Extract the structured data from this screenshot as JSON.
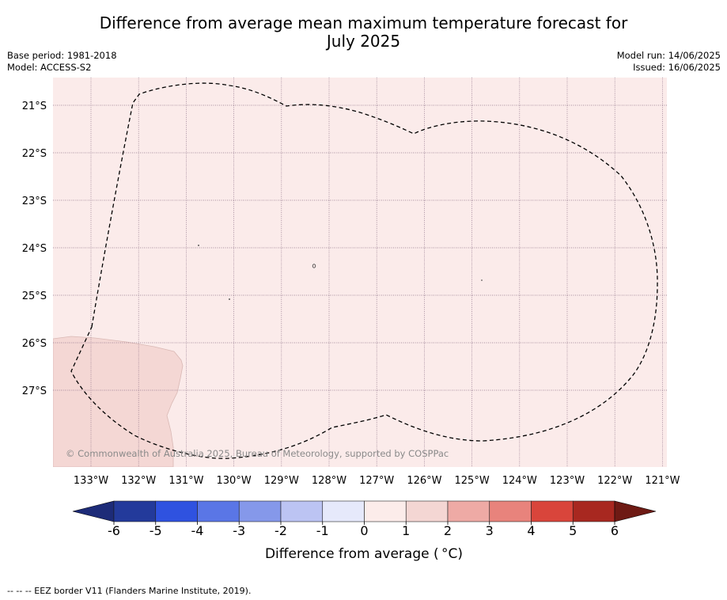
{
  "header": {
    "title_line1": "Difference from average mean maximum temperature forecast for",
    "title_line2": "July 2025",
    "base_period": "Base period: 1981-2018",
    "model": "Model: ACCESS-S2",
    "model_run": "Model run: 14/06/2025",
    "issued": "Issued: 16/06/2025"
  },
  "map": {
    "latitude_labels": [
      "21°S",
      "22°S",
      "23°S",
      "24°S",
      "25°S",
      "26°S",
      "27°S"
    ],
    "longitude_labels": [
      "133°W",
      "132°W",
      "131°W",
      "130°W",
      "129°W",
      "128°W",
      "127°W",
      "126°W",
      "125°W",
      "124°W",
      "123°W",
      "122°W",
      "121°W"
    ],
    "copyright": "© Commonwealth of Australia 2025, Bureau of Meteorology, supported by COSPPac",
    "background_anomaly_color": "#fbebea",
    "warmer_area_color": "#f4d7d4"
  },
  "colorbar": {
    "label": "Difference from average ( °C)",
    "ticks": [
      "-6",
      "-5",
      "-4",
      "-3",
      "-2",
      "-1",
      "0",
      "1",
      "2",
      "3",
      "4",
      "5",
      "6"
    ],
    "colors": [
      "#233a9b",
      "#2f52e0",
      "#5a76e6",
      "#8598ea",
      "#bcc4f3",
      "#e6e9fb",
      "#fcecea",
      "#f4d6d3",
      "#eeaaa5",
      "#e8837c",
      "#d9453b",
      "#a82820"
    ],
    "under_color": "#1d2b78",
    "over_color": "#6e1a14"
  },
  "legend": {
    "footnote": "--  --  -- EEZ border V11 (Flanders Marine Institute, 2019)."
  }
}
